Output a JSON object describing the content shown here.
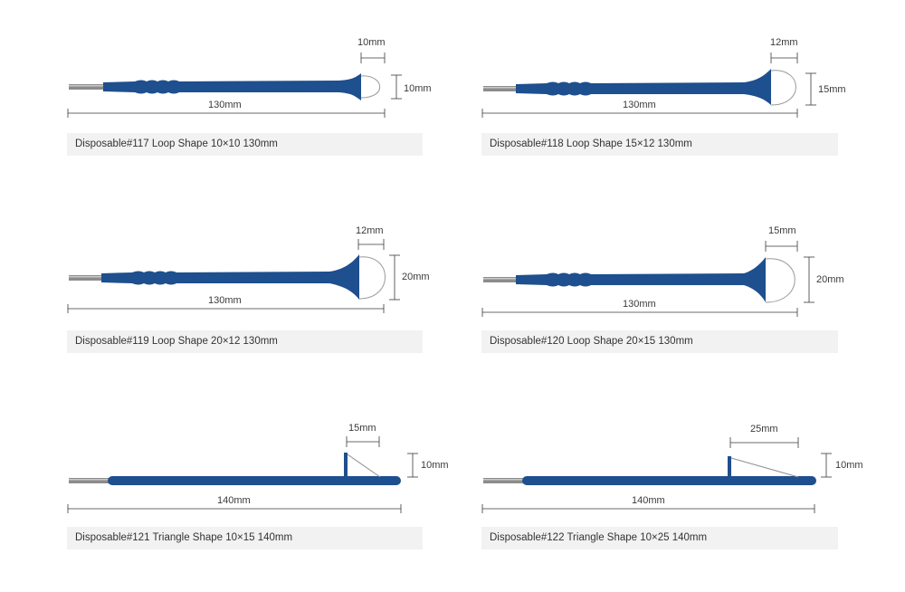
{
  "colors": {
    "handle": "#1e4f8e",
    "pin": "#8c8c8c",
    "caption_bg": "#f2f2f2",
    "dimension_line": "#3a3a3a"
  },
  "products": [
    {
      "name": "Disposable#117 Loop Shape 10×10 130mm",
      "shape": "loop",
      "length": "130mm",
      "tip_width": "10mm",
      "tip_height": "10mm"
    },
    {
      "name": "Disposable#118 Loop Shape 15×12 130mm",
      "shape": "loop",
      "length": "130mm",
      "tip_width": "12mm",
      "tip_height": "15mm"
    },
    {
      "name": "Disposable#119 Loop Shape 20×12 130mm",
      "shape": "loop",
      "length": "130mm",
      "tip_width": "12mm",
      "tip_height": "20mm"
    },
    {
      "name": "Disposable#120 Loop Shape 20×15 130mm",
      "shape": "loop",
      "length": "130mm",
      "tip_width": "15mm",
      "tip_height": "20mm"
    },
    {
      "name": "Disposable#121 Triangle Shape 10×15 140mm",
      "shape": "triangle",
      "length": "140mm",
      "tip_width": "15mm",
      "tip_height": "10mm"
    },
    {
      "name": "Disposable#122 Triangle Shape 10×25 140mm",
      "shape": "triangle",
      "length": "140mm",
      "tip_width": "25mm",
      "tip_height": "10mm"
    }
  ]
}
